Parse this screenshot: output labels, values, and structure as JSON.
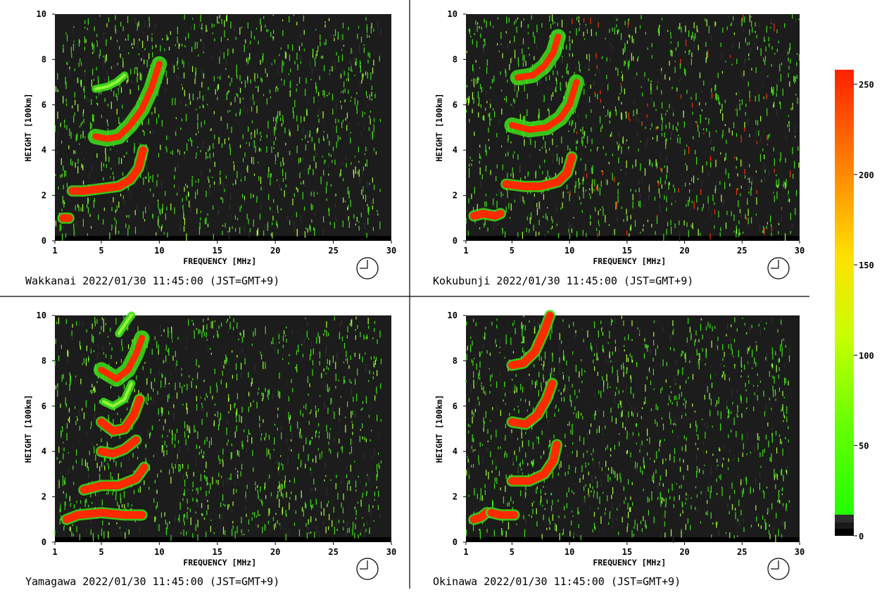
{
  "chart_data": [
    {
      "type": "heatmap",
      "station": "Wakkanai",
      "caption": "Wakkanai 2022/01/30 11:45:00 (JST=GMT+9)",
      "xlabel": "FREQUENCY [MHz]",
      "ylabel": "HEIGHT [100km]",
      "xlim": [
        1,
        30
      ],
      "ylim": [
        0,
        10
      ],
      "xticks": [
        "1",
        "5",
        "10",
        "15",
        "20",
        "25",
        "30"
      ],
      "yticks": [
        "0",
        "2",
        "4",
        "6",
        "8",
        "10"
      ],
      "traces": [
        {
          "points": [
            [
              1.7,
              1.0
            ],
            [
              2.2,
              1.0
            ]
          ],
          "kind": "hot"
        },
        {
          "points": [
            [
              2.5,
              2.2
            ],
            [
              3.5,
              2.2
            ],
            [
              5.0,
              2.3
            ],
            [
              6.5,
              2.4
            ],
            [
              7.5,
              2.7
            ],
            [
              8.2,
              3.2
            ],
            [
              8.6,
              4.0
            ]
          ],
          "kind": "hot"
        },
        {
          "points": [
            [
              4.5,
              4.6
            ],
            [
              5.5,
              4.5
            ],
            [
              6.5,
              4.6
            ],
            [
              7.5,
              5.1
            ],
            [
              8.5,
              5.8
            ],
            [
              9.3,
              6.7
            ],
            [
              10.0,
              7.8
            ]
          ],
          "kind": "mixed"
        },
        {
          "points": [
            [
              4.5,
              6.7
            ],
            [
              5.5,
              6.8
            ],
            [
              6.3,
              7.0
            ],
            [
              7.0,
              7.3
            ]
          ],
          "kind": "green"
        }
      ]
    },
    {
      "type": "heatmap",
      "station": "Kokubunji",
      "caption": "Kokubunji 2022/01/30 11:45:00 (JST=GMT+9)",
      "xlabel": "FREQUENCY [MHz]",
      "ylabel": "HEIGHT [100km]",
      "xlim": [
        1,
        30
      ],
      "ylim": [
        0,
        10
      ],
      "xticks": [
        "1",
        "5",
        "10",
        "15",
        "20",
        "25",
        "30"
      ],
      "yticks": [
        "0",
        "2",
        "4",
        "6",
        "8",
        "10"
      ],
      "traces": [
        {
          "points": [
            [
              1.7,
              1.1
            ],
            [
              2.5,
              1.2
            ],
            [
              3.5,
              1.1
            ],
            [
              4.0,
              1.2
            ]
          ],
          "kind": "hot"
        },
        {
          "points": [
            [
              4.5,
              2.5
            ],
            [
              6.0,
              2.4
            ],
            [
              7.5,
              2.4
            ],
            [
              9.0,
              2.6
            ],
            [
              9.8,
              3.0
            ],
            [
              10.2,
              3.7
            ]
          ],
          "kind": "hot"
        },
        {
          "points": [
            [
              5.0,
              5.1
            ],
            [
              6.5,
              4.9
            ],
            [
              8.0,
              5.0
            ],
            [
              9.2,
              5.4
            ],
            [
              10.0,
              6.0
            ],
            [
              10.6,
              7.0
            ]
          ],
          "kind": "mixed"
        },
        {
          "points": [
            [
              5.5,
              7.2
            ],
            [
              6.8,
              7.3
            ],
            [
              7.8,
              7.7
            ],
            [
              8.6,
              8.3
            ],
            [
              9.0,
              9.0
            ]
          ],
          "kind": "mixed"
        }
      ]
    },
    {
      "type": "heatmap",
      "station": "Yamagawa",
      "caption": "Yamagawa 2022/01/30 11:45:00 (JST=GMT+9)",
      "xlabel": "FREQUENCY [MHz]",
      "ylabel": "HEIGHT [100km]",
      "xlim": [
        1,
        30
      ],
      "ylim": [
        0,
        10
      ],
      "xticks": [
        "1",
        "5",
        "10",
        "15",
        "20",
        "25",
        "30"
      ],
      "yticks": [
        "0",
        "2",
        "4",
        "6",
        "8",
        "10"
      ],
      "traces": [
        {
          "points": [
            [
              2.0,
              1.0
            ],
            [
              3.0,
              1.2
            ],
            [
              5.0,
              1.3
            ],
            [
              7.0,
              1.2
            ],
            [
              8.5,
              1.2
            ]
          ],
          "kind": "hot"
        },
        {
          "points": [
            [
              3.5,
              2.3
            ],
            [
              5.0,
              2.5
            ],
            [
              6.5,
              2.5
            ],
            [
              8.0,
              2.8
            ],
            [
              8.7,
              3.3
            ]
          ],
          "kind": "hot"
        },
        {
          "points": [
            [
              5.0,
              4.0
            ],
            [
              6.0,
              3.9
            ],
            [
              7.0,
              4.1
            ],
            [
              8.0,
              4.5
            ]
          ],
          "kind": "hot"
        },
        {
          "points": [
            [
              5.0,
              5.3
            ],
            [
              6.0,
              4.9
            ],
            [
              7.0,
              5.0
            ],
            [
              7.8,
              5.6
            ],
            [
              8.3,
              6.3
            ]
          ],
          "kind": "hot"
        },
        {
          "points": [
            [
              5.2,
              6.2
            ],
            [
              6.0,
              6.0
            ],
            [
              7.0,
              6.3
            ],
            [
              7.6,
              7.0
            ]
          ],
          "kind": "green"
        },
        {
          "points": [
            [
              5.0,
              7.6
            ],
            [
              6.3,
              7.2
            ],
            [
              7.3,
              7.6
            ],
            [
              8.0,
              8.3
            ],
            [
              8.5,
              9.0
            ]
          ],
          "kind": "mixed"
        },
        {
          "points": [
            [
              6.5,
              9.2
            ],
            [
              7.3,
              9.8
            ],
            [
              7.6,
              10.0
            ]
          ],
          "kind": "green"
        }
      ]
    },
    {
      "type": "heatmap",
      "station": "Okinawa",
      "caption": "Okinawa 2022/01/30 11:45:00 (JST=GMT+9)",
      "xlabel": "FREQUENCY [MHz]",
      "ylabel": "HEIGHT [100km]",
      "xlim": [
        1,
        30
      ],
      "ylim": [
        0,
        10
      ],
      "xticks": [
        "1",
        "5",
        "10",
        "15",
        "20",
        "25",
        "30"
      ],
      "yticks": [
        "0",
        "2",
        "4",
        "6",
        "8",
        "10"
      ],
      "traces": [
        {
          "points": [
            [
              1.7,
              1.0
            ],
            [
              2.3,
              1.1
            ],
            [
              2.8,
              1.3
            ]
          ],
          "kind": "hot"
        },
        {
          "points": [
            [
              3.2,
              1.3
            ],
            [
              4.0,
              1.2
            ],
            [
              5.2,
              1.2
            ]
          ],
          "kind": "hot"
        },
        {
          "points": [
            [
              5.0,
              2.7
            ],
            [
              6.5,
              2.7
            ],
            [
              7.8,
              3.0
            ],
            [
              8.6,
              3.6
            ],
            [
              8.9,
              4.3
            ]
          ],
          "kind": "hot"
        },
        {
          "points": [
            [
              5.0,
              5.3
            ],
            [
              6.2,
              5.2
            ],
            [
              7.2,
              5.6
            ],
            [
              8.0,
              6.3
            ],
            [
              8.5,
              7.0
            ]
          ],
          "kind": "hot"
        },
        {
          "points": [
            [
              5.0,
              7.8
            ],
            [
              6.0,
              7.9
            ],
            [
              7.0,
              8.4
            ],
            [
              7.8,
              9.3
            ],
            [
              8.3,
              10.0
            ]
          ],
          "kind": "hot"
        }
      ]
    }
  ],
  "colorbar": {
    "ticks": [
      "250",
      "200",
      "150",
      "100",
      "50",
      "0"
    ],
    "tick_values": [
      250,
      200,
      150,
      100,
      50,
      0
    ],
    "vmax": 258,
    "colors": [
      "#ff2a00",
      "#ff6a00",
      "#ffc000",
      "#e8ff00",
      "#9cff00",
      "#33ff00",
      "#2a2a2a",
      "#000000"
    ]
  },
  "noise_colors": {
    "background": "#1c1c1c",
    "green": "#3ee01a",
    "light": "#aaff44",
    "red": "#ff3000",
    "hot": "#ff2a00"
  }
}
